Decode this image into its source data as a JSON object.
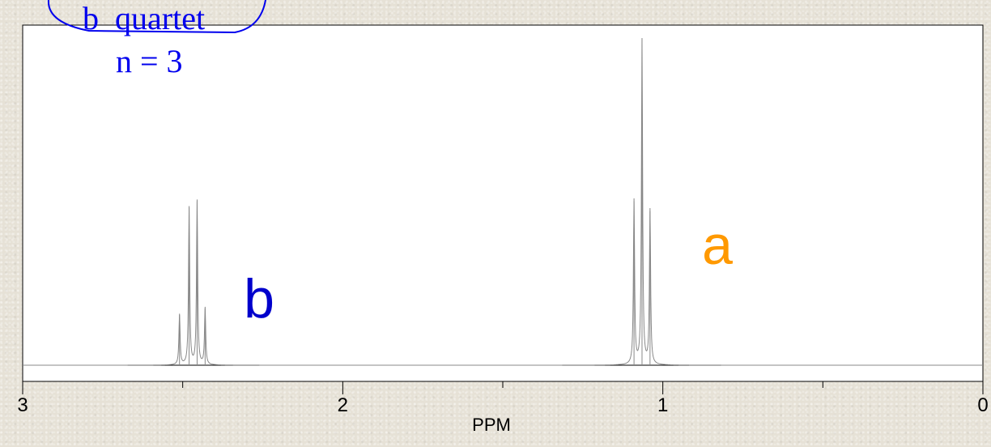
{
  "chart_data": {
    "type": "line",
    "xlabel": "PPM",
    "xlim": [
      3,
      0
    ],
    "x_reversed": true,
    "x_ticks": [
      3,
      2,
      1,
      0
    ],
    "x_minor_ticks": [
      2.5,
      1.5,
      0.5
    ],
    "ylim": [
      0,
      1.0
    ],
    "grid": false,
    "series": [
      {
        "peaks": [
          {
            "x": 2.51,
            "y": 0.155
          },
          {
            "x": 2.48,
            "y": 0.485
          },
          {
            "x": 2.455,
            "y": 0.505
          },
          {
            "x": 2.43,
            "y": 0.175
          },
          {
            "x": 1.09,
            "y": 0.505
          },
          {
            "x": 1.065,
            "y": 1.0
          },
          {
            "x": 1.04,
            "y": 0.475
          }
        ],
        "color": "#888888"
      }
    ],
    "annotations": [
      {
        "text": "a",
        "color": "#ff9900"
      },
      {
        "text": "b",
        "color": "#0000cc"
      },
      {
        "text": "b  quartet",
        "color": "#0000ee"
      },
      {
        "text": "n = 3",
        "color": "#0000ee"
      }
    ]
  },
  "colors": {
    "frame": "#000000",
    "plot_bg": "#ffffff",
    "trace": "#888888"
  }
}
